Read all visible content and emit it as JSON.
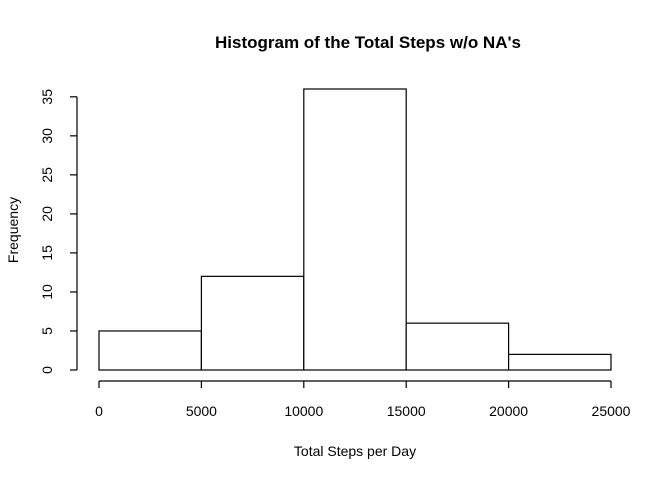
{
  "chart_data": {
    "type": "bar",
    "title": "Histogram of the Total Steps w/o NA's",
    "xlabel": "Total Steps per Day",
    "ylabel": "Frequency",
    "bins": [
      {
        "from": 0,
        "to": 5000,
        "count": 5
      },
      {
        "from": 5000,
        "to": 10000,
        "count": 12
      },
      {
        "from": 10000,
        "to": 15000,
        "count": 36
      },
      {
        "from": 15000,
        "to": 20000,
        "count": 6
      },
      {
        "from": 20000,
        "to": 25000,
        "count": 2
      }
    ],
    "xlim": [
      0,
      25000
    ],
    "ylim": [
      0,
      36
    ],
    "xticks": [
      0,
      5000,
      10000,
      15000,
      20000,
      25000
    ],
    "yticks": [
      0,
      5,
      10,
      15,
      20,
      25,
      30,
      35
    ],
    "grid": false
  }
}
